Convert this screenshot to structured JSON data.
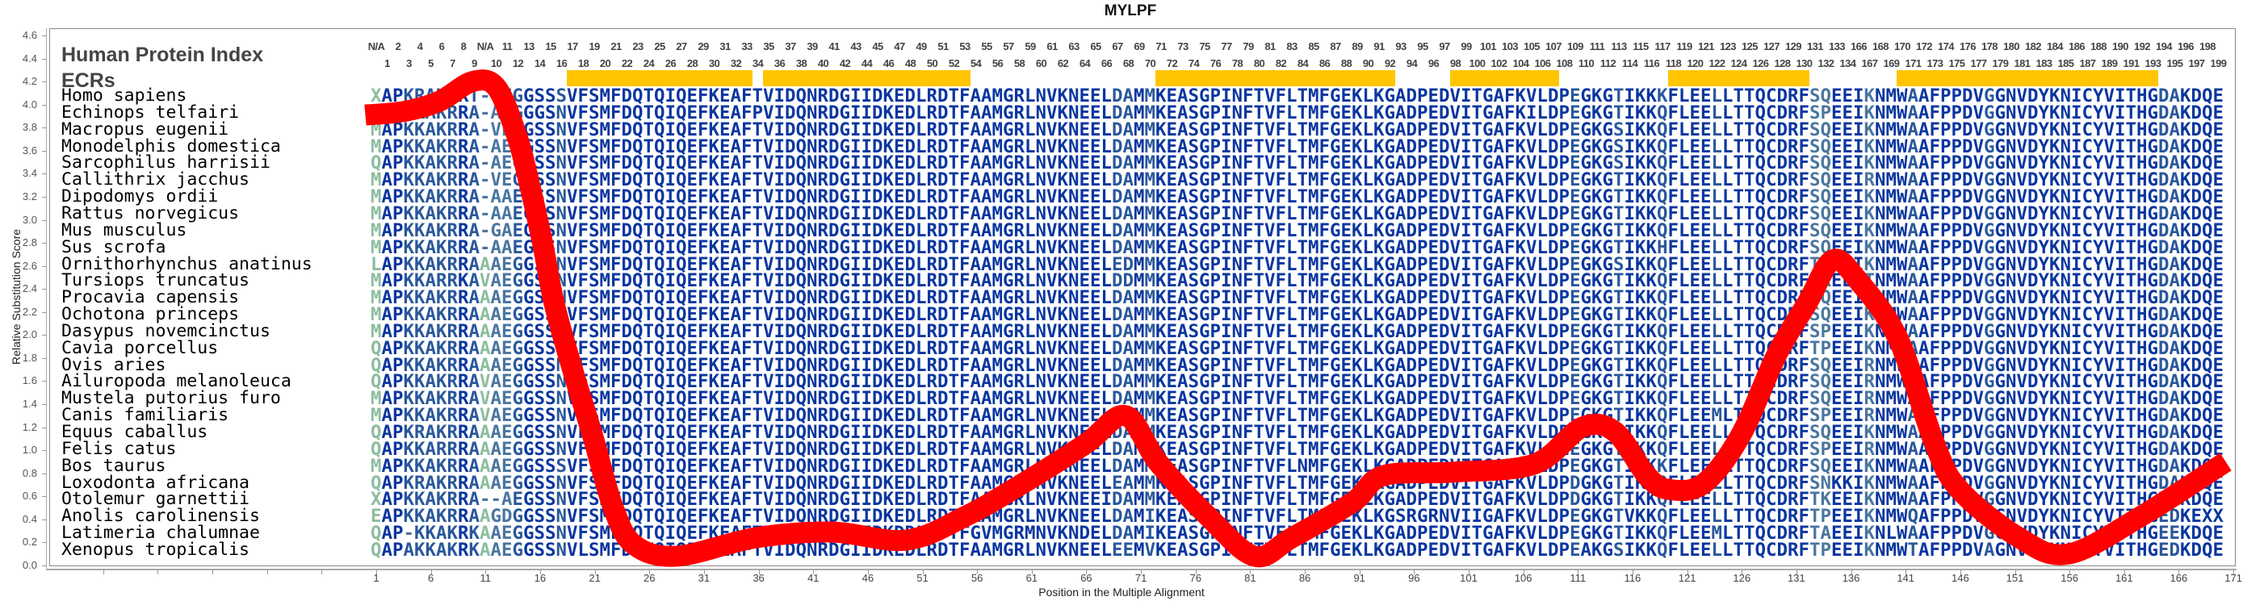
{
  "title": "MYLPF",
  "headers": {
    "index_label": "Human Protein Index",
    "ecr_label": "ECRs"
  },
  "human_index": {
    "top": [
      "N/A",
      "2",
      "4",
      "6",
      "8",
      "N/A",
      "11",
      "13",
      "15",
      "17",
      "19",
      "21",
      "23",
      "25",
      "27",
      "29",
      "31",
      "33",
      "35",
      "37",
      "39",
      "41",
      "43",
      "45",
      "47",
      "49",
      "51",
      "53",
      "55",
      "57",
      "59",
      "61",
      "63",
      "65",
      "67",
      "69",
      "71",
      "73",
      "75",
      "77",
      "79",
      "81",
      "83",
      "85",
      "87",
      "89",
      "91",
      "93",
      "95",
      "97",
      "99",
      "101",
      "103",
      "105",
      "107",
      "109",
      "111",
      "113",
      "115",
      "117",
      "119",
      "121",
      "123",
      "125",
      "127",
      "129",
      "131",
      "133",
      "166",
      "168",
      "170",
      "172",
      "174",
      "176",
      "178",
      "180",
      "182",
      "184",
      "186",
      "188",
      "190",
      "192",
      "194",
      "196",
      "198"
    ],
    "bottom": [
      "1",
      "3",
      "5",
      "7",
      "9",
      "10",
      "12",
      "14",
      "16",
      "18",
      "20",
      "22",
      "24",
      "26",
      "28",
      "30",
      "32",
      "34",
      "36",
      "38",
      "40",
      "42",
      "44",
      "46",
      "48",
      "50",
      "52",
      "54",
      "56",
      "58",
      "60",
      "62",
      "64",
      "66",
      "68",
      "70",
      "72",
      "74",
      "76",
      "78",
      "80",
      "82",
      "84",
      "86",
      "88",
      "90",
      "92",
      "94",
      "96",
      "98",
      "100",
      "102",
      "104",
      "106",
      "108",
      "110",
      "112",
      "114",
      "116",
      "118",
      "120",
      "122",
      "124",
      "126",
      "128",
      "130",
      "132",
      "134",
      "167",
      "169",
      "171",
      "173",
      "175",
      "177",
      "179",
      "181",
      "183",
      "185",
      "187",
      "189",
      "191",
      "193",
      "195",
      "197",
      "199"
    ]
  },
  "ecr_regions": [
    [
      19,
      35
    ],
    [
      37,
      55
    ],
    [
      73,
      94
    ],
    [
      100,
      109
    ],
    [
      120,
      132
    ],
    [
      141,
      164
    ]
  ],
  "alignment": [
    {
      "species": "Homo sapiens",
      "sequence": "XAPKRAKRRT-VEGGSSSVFSMFDQTQIQEFKEAFTVIDQNRDGIIDKEDLRDTFAAMGRLNVKNEELDAMMKEASGPINFTVFLTMFGEKLKGADPEDVITGAFKVLDPEGKGTIKKKFLEELLTTQCDRFSQEEIKNMWAAFPPDVGGNVDYKNICYVITHGDAKDQE"
    },
    {
      "species": "Echinops telfairi",
      "sequence": "MAPKKAKRRA-AEGGGSNVFSMFDQTQIQEFKEAFPVIDQNRDGIIDKEDLRDTFAAMGRLNVKNEELDAMMKEASGPINFTVFLTMFGEKLKGADPEDVITGAFKILDPEGKGTIKKQFLEELLTTQCDRFSPEEIKNMWAAFPPDVGGNVDYKNICYVITHGDAKDQE"
    },
    {
      "species": "Macropus eugenii",
      "sequence": "MAPKKAKRRA-VEGGSSNVFSMFDQTQIQEFKEAFTVIDQNRDGIIDKEDLRDTFAAMGRLNVKNEELDAMMKEASGPINFTVFLTMFGEKLKGADPEDVITGAFKVLDPEGKGSIKKQFLEELLTTQCDRFSQEEIKNMWAAFPPDVGGNVDYKNICYVITHGDAKDQE"
    },
    {
      "species": "Monodelphis domestica",
      "sequence": "MAPKKAKRRA-AEGGSSNVFSMFDQTQIQEFKEAFTVIDQNRDGIIDKEDLRDTFAAMGRLNVKNEELDAMMKEASGPINFTVFLTMFGEKLKGADPEDVITGAFKVLDPEGKGSIKKQFLEELLTTQCDRFSQEEIKNMWAAFPPDVGGNVDYKNICYVITHGDAKDQE"
    },
    {
      "species": "Sarcophilus harrisii",
      "sequence": "QAPKKAKRRA-AEGGSSNVFSMFDQTQIQEFKEAFTVIDQNRDGIIDKEDLRDTFAAMGRLNVKNEELDAMMKEASGPINFTVFLTMFGEKLKGADPEDVITGAFKVLDPEGKGSIKKQFLEELLTTQCDRFSQEEIKNMWAAFPPDVGGNVDYKNICYVITHGDAKDQE"
    },
    {
      "species": "Callithrix jacchus",
      "sequence": "MAPKKAKRRA-VEGGSSNVFSMFDQTQIQEFKEAFTVIDQNRDGIIDKEDLRDTFAAMGRLNVKNEELDAMMKEASGPINFTVFLTMFGEKLKGADPEDVITGAFKVLDPEGKGTIKKQFLEELLTTQCDRFSQEEIRNMWAAFPPDVGGNVDYKNICYVITHGDAKDQE"
    },
    {
      "species": "Dipodomys ordii",
      "sequence": "MAPKKAKRRA-AAEGSSNVFSMFDQTQIQEFKEAFTVIDQNRDGIIDKEDLRDTFAAMGRLNVKNEELDAMMKEASGPINFTVFLTMFGEKLKGADPEDVITGAFKVLDPEGKGTIKKQFLEELLTTQCDRFSQEEIKNMWAAFPPDVGGNVDYKNICYVITHGDAKDQE"
    },
    {
      "species": "Rattus norvegicus",
      "sequence": "MAPKKAKRRA-AAEGSSNVFSMFDQTQIQEFKEAFTVIDQNRDGIIDKEDLRDTFAAMGRLNVKNEELDAMMKEASGPINFTVFLTMFGEKLKGADPEDVITGAFKVLDPEGKGTIKKQFLEELLTTQCDRFSQEEIKNMWAAFPPDVGGNVDYKNICYVITHGDAKDQE"
    },
    {
      "species": "Mus musculus",
      "sequence": "MAPKKAKRRA-GAEGSSNVFSMFDQTQIQEFKEAFTVIDQNRDGIIDKEDLRDTFAAMGRLNVKNEELDAMMKEASGPINFTVFLTMFGEKLKGADPEDVITGAFKVLDPEGKGTIKKQFLEELLTTQCDRFSQEEIKNMWAAFPPDVGGNVDYKNICYVITHGDAKDQE"
    },
    {
      "species": "Sus scrofa",
      "sequence": "MAPKKAKRRA-AAEGSSNVFSMFDQTQIQEFKEAFTVIDQNRDGIIDKEDLRDTFAAMGRLNVKNEELDAMMKEASGPINFTVFLTMFGEKLKGADPEDVITGAFKVLDPEGKGTIKKHFLEELLTTQCDRFSQEEIKNMWAAFPPDVGGNVDYKNICYVITHGDAKDQE"
    },
    {
      "species": "Ornithorhynchus anatinus",
      "sequence": "LAPKKAKRRAAAEGGSSNVFSMFDQTQIQEFKEAFTVIDQNRDGIIDKEDLRDTFAAMGRLNVKNEELEDMMKEASGPINFTVFLTMFGEKLKGADPEDVITGAFKVLDPEGKGSIKKQFLEELLTTQCDRFTQEEIKNMWAAFPPDVGGNVDYKNICYVITHGDAKDQE"
    },
    {
      "species": "Tursiops truncatus",
      "sequence": "MAPKKARRKAVAEGGSSNVFSMFDQTQIQEFKEAFTVIDQNRDGIIDKEDLRDTFAAMGRLNVKNEELDDMMKEASGPINFTVFLTMFGEKLKGADPEDVITGAFKVLDPEGKGTIKKQFLEELLTTQCDRFTREEITNMWAAFPPDVGGNVDYKNICYVITHGDAKDQE"
    },
    {
      "species": "Procavia capensis",
      "sequence": "MAPKKAKRRAAAEGGSSNVFSMFDQTQIQEFKEAFTVIDQNRDGIIDKEDLRDTFAAMGRLNVKNEELDAMMKEASGPINFTVFLTMFGEKLKGADPEDVITGAFKVLDPEGKGTIKKQFLEELLTTQCDRFSQEEIKNMWAAFPPDVGGNVDYKNICYVITHGDAKDQE"
    },
    {
      "species": "Ochotona princeps",
      "sequence": "MAPKKAKRRAAAEGGSSNVFSMFDQTQIQEFKEAFTVIDQNRDGIIDKEDLRDTFAAMGRLNVKNEELDAMMKEASGPINFTVFLTMFGEKLKGADPEDVITGAFKVLDPEGKGTIKKQFLEELLTTQCDRFSQEEIKNMWAAFPPDVGGNVDYKNICYVITHGDAKDQE"
    },
    {
      "species": "Dasypus novemcinctus",
      "sequence": "MAPKKAKRRAAAEGGSSNVFSMFDQTQIQEFKEAFTVIDQNRDGIIDKEDLRDTFAAMGRLNVKNEELDAMMKEASGPINFTVFLTMFGEKLKGADPEDVITGAFKVLDPEGKGTIKKQFLEELLTTQCDRFSPEEIKNMWAAFPPDVGGNVDYKNICYVITHGDAKDQE"
    },
    {
      "species": "Cavia porcellus",
      "sequence": "QAPKKAKRRAAAEGGSSNVFSMFDQTQIQEFKEAFTVIDQNRDGIIDKEDLRDTFAAMGRLNVKNEELDAMMKEASGPINFTVFLTMFGEKLKGADPEDVITGAFKVLDPEGKGTIKKQFLEELLTTQCDRFTPEEIKNMWAAFPPDVGGNVDYKNICYVITHGDAKDQE"
    },
    {
      "species": "Ovis aries",
      "sequence": "QAPKKAKRRAAAEGGSSNVFSMFDQTQIQEFKEAFTVIDQNRDGIIDKEDLRDTFAAMGRLNVKNEELDAMMKEASGPINFTVFLTMFGEKLKGADPEDVITGAFKVLDPEGKGTIKKQFLEELLTTQCDRFSQEEIRNMWAAFPPDVGGNVDYKNICYVITHGDAKDQE"
    },
    {
      "species": "Ailuropoda melanoleuca",
      "sequence": "QAPKKAKRRAVAEGGSSNVFSMFDQTQIQEFKEAFTVIDQNRDGIIDKEDLRDTFAAMGRLNVKNEELDAMMKEASGPINFTVFLTMFGEKLKGADPEDVITGAFKVLDPEGKGTIKKQFLEELLTTQCDRFSQEEIRNMWAAFPPDVGGNVDYKNICYVITHGDAKDQE"
    },
    {
      "species": "Mustela putorius furo",
      "sequence": "MAPKKAKRRAVAEGGSSNVFSMFDQTQIQEFKEAFTVIDQNRDGIIDKEDLRDTFAAMGRLNVKNEELDAMMKEASGPINFTVFLTMFGEKLKGADPEDVITGAFKVLDPEGKGTIKKQFLEELLTTQCDRFSQEEIRNMWAAFPPDVGGNVDYKNICYVITHGDAKDQE"
    },
    {
      "species": "Canis familiaris",
      "sequence": "MAPKKAKRRAVAEGGSSNVFSMFDQTQIQEFKEAFTVIDQNRDGIIDKEDLRDTFAAMGRLNVKNEELDAMMKEASGPINFTVFLTMFGEKLKGADPEDVITGAFKVLDPEGKGTIKKQFLEEMLTTQCDRFSPEEIRNMWAAFPPDVGGNVDYKNICYVITHGDAKDQE"
    },
    {
      "species": "Equus caballus",
      "sequence": "QAPKRAKRRAAAEGGSSNVFSMFDQTQIQEFKEAFTVIDQNRDGIIDKEDLRDTFAAMGRLNVKNEELDAMMKEASGPINFTVFLTMFGEKLKGADPEDVITGAFKVLDPEGKGTIKKQFLEELLTTQCDRFSQEEIKNMWAAFPPDVGGNVDYKNICYVITHGDAKDQE"
    },
    {
      "species": "Felis catus",
      "sequence": "QAPKKARRRAAAEGGSSNVFSMFDQTQIQEFKEAFTVIDQNRDGIIDKEDLRDTFAAMGRLNVKNEELDAMMKEASGPINFTVFLTMFGEKLKGADPEDVITGAFKVLDHEGKGTIKKQFLEELLTTQCDRFSPEEIRNMWAAFPPDVGGNVDYKNICYVITHGDAKDQE"
    },
    {
      "species": "Bos taurus",
      "sequence": "MAPKKAKRRAAAEGGSSSVFSMFDQTQIQEFKEAFTVIDQNRDGIIDKEDLRDTFAAMGRLNVKNEELDAMMKEASGPINFTVFLNMFGEKLKGADPEDVITGAFKVLDPEGKGTIKKKFLEELLTTQCDRFSQEEIKNMWAAFPPDVGGNVDYKNICYVITHGDAKDQE"
    },
    {
      "species": "Loxodonta africana",
      "sequence": "QAPKRAKRRAAAEGGSSNVFSMFDQTQIQEFKEAFTVIDQNRDGIIDKEDLRDTFAAMGRLNVKNEELEAMMKEASGPINFTVFLTMFGEKLKGADPEDVITGAFKVLDPDGKGTIKKQFLEELLTTQCDRFSNKKIKNMWAAFPPDVGGNVDYKNICYVITHGDAKDQE"
    },
    {
      "species": "Otolemur garnettii",
      "sequence": "XAPKKAKRRA--AEGSSNVFSMFDQTQIQEFKEAFTVIDQNRDGIIDKEDLRDTFAAMGRLNVKNEEIDAMMKEASGPINFTVFLTMFGEKLKGADPEDVITGAFKVLDPDGKGTIKKQFLEELLTTQCDRFTKEEIKNMWAAFPPDVGGNVDYKNICYVITHGDAKDQE"
    },
    {
      "species": "Anolis carolinensis",
      "sequence": "EAPKKAKRRAAGDGGSSNVFSMFDQTQIQEFKEAFTVIDQNRDGIIDKEDLRDTFAAMGRLNVKNEELDAMIKEASGPINFTVFLTMFGEKLKGSRGRNVIIGAFKVLDPEGKGTVKKQFLEELLTTQCDRFTPEEIKNMWQAFPPDVAGNVDYKNICYVITHGEDKEXX"
    },
    {
      "species": "Latimeria chalumnae",
      "sequence": "QAP-KKAKRKAAEGGSSNVFSMFDQTQIQEFKEAFTVIDQNRDGIIDKDDLRDTFGVMGRMNVKNDELDAMIKEASGPINFTVFLTMFGEKLKGADPEDVITGAFKVLDPEGKGTIKKQFLEEMLTTQCDRFTAEEIKNLWAAFPPDVGGNVDYKNICYVITHGEEKDQE"
    },
    {
      "species": "Xenopus tropicalis",
      "sequence": "QAPAKKAKRKAAEGGSSNVLSMFDQTQIQEFKEAFTVIDQNRDGIIDKEDLRDTFAAMGRLNVKNEELEEMVKEASGPINFTVFLTMFGEKLKGADPEDVITGAFKVLDPEAKGSIKKQFLEELLTTQCDRFTPEEIKNMWTAFPPDVAGNVDYKNICYVITHGEDKDQE"
    }
  ],
  "colors": {
    "curve": "#ff0000",
    "ecr_bar": "#ffc500",
    "conserved": "#0a36a0",
    "semi_conserved": "#2a589c",
    "moderate": "#4a76a0",
    "variable": "#8dbda0"
  },
  "chart_data": {
    "type": "line",
    "title": "MYLPF",
    "xlabel": "Position in the Multiple Alignment",
    "ylabel": "Relative Substitution Score",
    "ylim": [
      0,
      4.6
    ],
    "xlim": [
      1,
      171
    ],
    "grid": false,
    "yticks": [
      "0.0",
      "0.2",
      "0.4",
      "0.6",
      "0.8",
      "1.0",
      "1.2",
      "1.4",
      "1.6",
      "1.8",
      "2.0",
      "2.2",
      "2.4",
      "2.6",
      "2.8",
      "3.0",
      "3.2",
      "3.4",
      "3.6",
      "3.8",
      "4.0",
      "4.2",
      "4.4",
      "4.6"
    ],
    "xticks": [
      "1",
      "6",
      "11",
      "16",
      "21",
      "26",
      "31",
      "36",
      "41",
      "46",
      "51",
      "56",
      "61",
      "66",
      "71",
      "76",
      "81",
      "86",
      "91",
      "96",
      "101",
      "106",
      "111",
      "116",
      "121",
      "126",
      "131",
      "136",
      "141",
      "146",
      "151",
      "156",
      "161",
      "166",
      "171"
    ],
    "series": [
      {
        "x": [
          0,
          3.5,
          6.8,
          9.8,
          12.0,
          13.9,
          15.0,
          16.2,
          17.3,
          19.0,
          20.8,
          22.7,
          24.6,
          28.5,
          35.7,
          42.7,
          49.5,
          55.0,
          60.5,
          66.0,
          69.6,
          72.6,
          77.1,
          81.4,
          84.8,
          90.4,
          93.2,
          99.6,
          107.0,
          111.4,
          114.4,
          117.3,
          119.3,
          122.5,
          125.9,
          129.2,
          132.0,
          134.3,
          136.5,
          140.3,
          143.6,
          145.9,
          151.4,
          155.9,
          162.6,
          170.3
        ],
        "y": [
          3.91,
          3.94,
          4.03,
          4.2,
          4.15,
          3.72,
          3.32,
          2.81,
          2.27,
          1.69,
          1.13,
          0.5,
          0.18,
          0.08,
          0.24,
          0.29,
          0.22,
          0.43,
          0.73,
          1.06,
          1.3,
          0.89,
          0.43,
          0.08,
          0.24,
          0.55,
          0.78,
          0.81,
          0.88,
          1.2,
          1.16,
          0.78,
          0.66,
          0.71,
          1.13,
          1.83,
          2.28,
          2.65,
          2.49,
          1.97,
          1.07,
          0.66,
          0.24,
          0.1,
          0.43,
          0.9
        ]
      }
    ]
  }
}
